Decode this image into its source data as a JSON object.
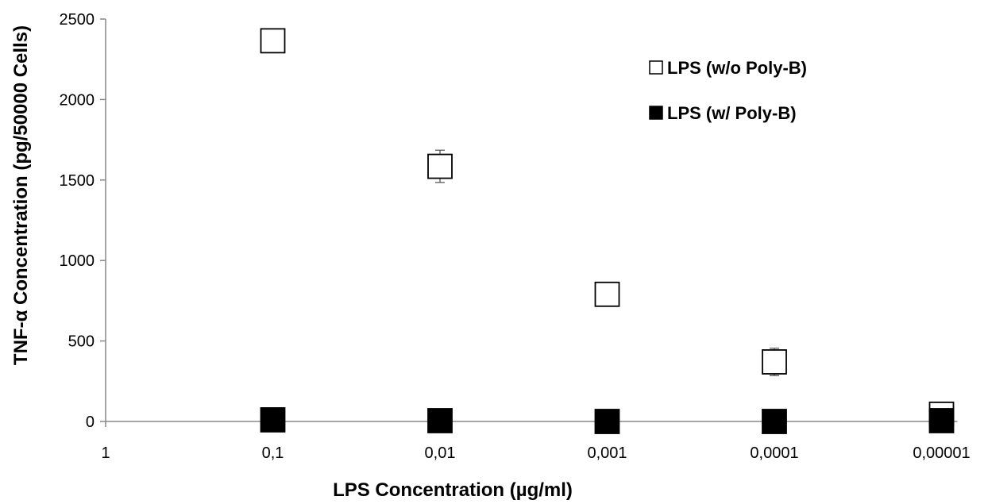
{
  "chart_data": {
    "type": "scatter",
    "xlabel": "LPS Concentration (µg/ml)",
    "ylabel": "TNF-α Concentration (pg/50000 Cells)",
    "categories": [
      "1",
      "0,1",
      "0,01",
      "0,001",
      "0,0001",
      "0,00001"
    ],
    "ylim": [
      0,
      2500
    ],
    "yticks": [
      0,
      500,
      1000,
      1500,
      2000,
      2500
    ],
    "grid": false,
    "legend_position": "top-right",
    "series": [
      {
        "name": "LPS (w/o Poly-B)",
        "marker": "open-square",
        "color": "#000000",
        "x": [
          "0,1",
          "0,01",
          "0,001",
          "0,0001",
          "0,00001"
        ],
        "values": [
          2365,
          1585,
          790,
          370,
          45
        ],
        "error": [
          0,
          100,
          0,
          85,
          20
        ]
      },
      {
        "name": "LPS (w/ Poly-B)",
        "marker": "filled-square",
        "color": "#000000",
        "x": [
          "0,1",
          "0,01",
          "0,001",
          "0,0001",
          "0,00001"
        ],
        "values": [
          10,
          5,
          0,
          0,
          5
        ],
        "error": [
          0,
          0,
          0,
          0,
          0
        ]
      }
    ]
  }
}
